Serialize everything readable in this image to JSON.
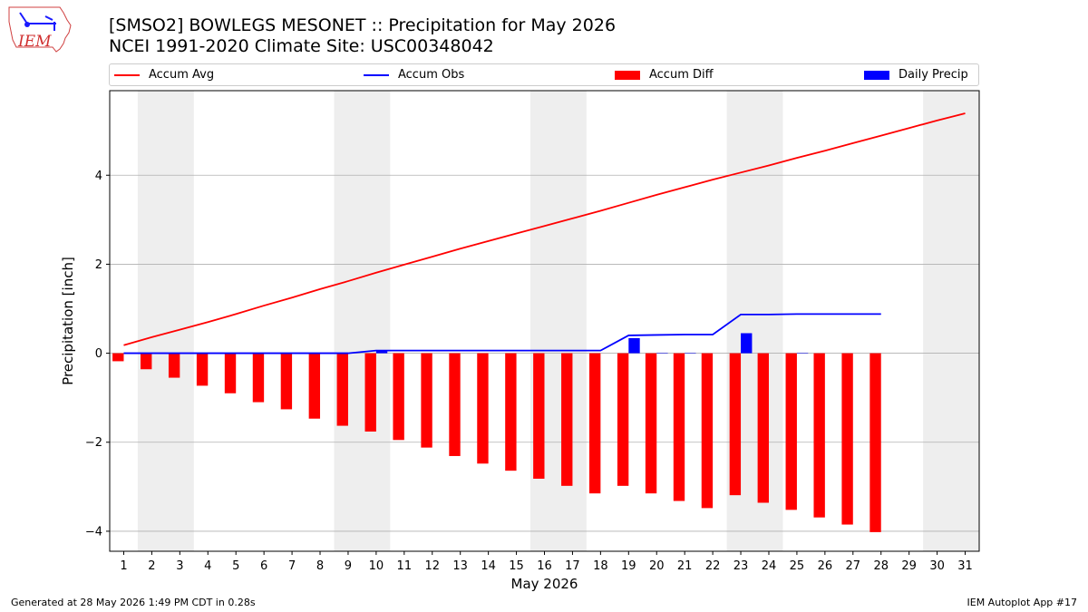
{
  "header": {
    "title_line1": "[SMSO2] BOWLEGS MESONET :: Precipitation for May 2026",
    "title_line2": "NCEI 1991-2020 Climate Site: USC00348042",
    "logo_text": "IEM"
  },
  "footer": {
    "generated": "Generated at 28 May 2026 1:49 PM CDT in 0.28s",
    "app": "IEM Autoplot App #17"
  },
  "colors": {
    "avg": "#ff0000",
    "obs": "#0000ff",
    "diff": "#ff0000",
    "daily": "#0000ff",
    "weekend_shade": "#eeeeee",
    "grid": "#b0b0b0"
  },
  "chart_data": {
    "type": "bar",
    "title": "[SMSO2] BOWLEGS MESONET :: Precipitation for May 2026",
    "subtitle": "NCEI 1991-2020 Climate Site: USC00348042",
    "xlabel": "May 2026",
    "ylabel": "Precipitation [inch]",
    "x": [
      1,
      2,
      3,
      4,
      5,
      6,
      7,
      8,
      9,
      10,
      11,
      12,
      13,
      14,
      15,
      16,
      17,
      18,
      19,
      20,
      21,
      22,
      23,
      24,
      25,
      26,
      27,
      28,
      29,
      30,
      31
    ],
    "xlim": [
      0.5,
      31.5
    ],
    "ylim": [
      -4.45,
      5.9
    ],
    "yticks": [
      -4,
      -2,
      0,
      2,
      4
    ],
    "grid": true,
    "legend_position": "top",
    "weekend_shading": [
      [
        1.5,
        3.5
      ],
      [
        8.5,
        10.5
      ],
      [
        15.5,
        17.5
      ],
      [
        22.5,
        24.5
      ],
      [
        29.5,
        31.5
      ]
    ],
    "series": [
      {
        "name": "Accum Avg",
        "kind": "line",
        "x": [
          1,
          2,
          3,
          4,
          5,
          6,
          7,
          8,
          9,
          10,
          11,
          12,
          13,
          14,
          15,
          16,
          17,
          18,
          19,
          20,
          21,
          22,
          23,
          24,
          25,
          26,
          27,
          28,
          29,
          30,
          31
        ],
        "values": [
          0.18,
          0.36,
          0.53,
          0.7,
          0.88,
          1.07,
          1.25,
          1.44,
          1.62,
          1.81,
          1.99,
          2.17,
          2.35,
          2.52,
          2.69,
          2.86,
          3.03,
          3.2,
          3.38,
          3.56,
          3.73,
          3.9,
          4.06,
          4.22,
          4.39,
          4.55,
          4.72,
          4.89,
          5.06,
          5.23,
          5.39
        ]
      },
      {
        "name": "Accum Obs",
        "kind": "line",
        "x": [
          1,
          2,
          3,
          4,
          5,
          6,
          7,
          8,
          9,
          10,
          11,
          12,
          13,
          14,
          15,
          16,
          17,
          18,
          19,
          20,
          21,
          22,
          23,
          24,
          25,
          26,
          27,
          28
        ],
        "values": [
          0.0,
          0.0,
          0.0,
          0.0,
          0.0,
          0.0,
          0.0,
          0.0,
          0.0,
          0.06,
          0.06,
          0.06,
          0.06,
          0.06,
          0.06,
          0.06,
          0.06,
          0.06,
          0.4,
          0.41,
          0.42,
          0.42,
          0.87,
          0.87,
          0.88,
          0.88,
          0.88,
          0.88
        ]
      },
      {
        "name": "Accum Diff",
        "kind": "bar",
        "x": [
          1,
          2,
          3,
          4,
          5,
          6,
          7,
          8,
          9,
          10,
          11,
          12,
          13,
          14,
          15,
          16,
          17,
          18,
          19,
          20,
          21,
          22,
          23,
          24,
          25,
          26,
          27,
          28
        ],
        "values": [
          -0.18,
          -0.36,
          -0.55,
          -0.73,
          -0.9,
          -1.1,
          -1.26,
          -1.47,
          -1.63,
          -1.76,
          -1.95,
          -2.12,
          -2.31,
          -2.48,
          -2.64,
          -2.82,
          -2.98,
          -3.15,
          -2.98,
          -3.15,
          -3.32,
          -3.48,
          -3.19,
          -3.36,
          -3.52,
          -3.69,
          -3.85,
          -4.02
        ]
      },
      {
        "name": "Daily Precip",
        "kind": "bar",
        "x": [
          1,
          2,
          3,
          4,
          5,
          6,
          7,
          8,
          9,
          10,
          11,
          12,
          13,
          14,
          15,
          16,
          17,
          18,
          19,
          20,
          21,
          22,
          23,
          24,
          25,
          26,
          27,
          28
        ],
        "values": [
          0,
          0,
          0,
          0,
          0,
          0,
          0,
          0,
          0,
          0.06,
          0,
          0,
          0,
          0,
          0,
          0,
          0,
          0,
          0.34,
          0.01,
          0.01,
          0,
          0.45,
          0,
          0.01,
          0,
          0,
          0
        ]
      }
    ]
  }
}
